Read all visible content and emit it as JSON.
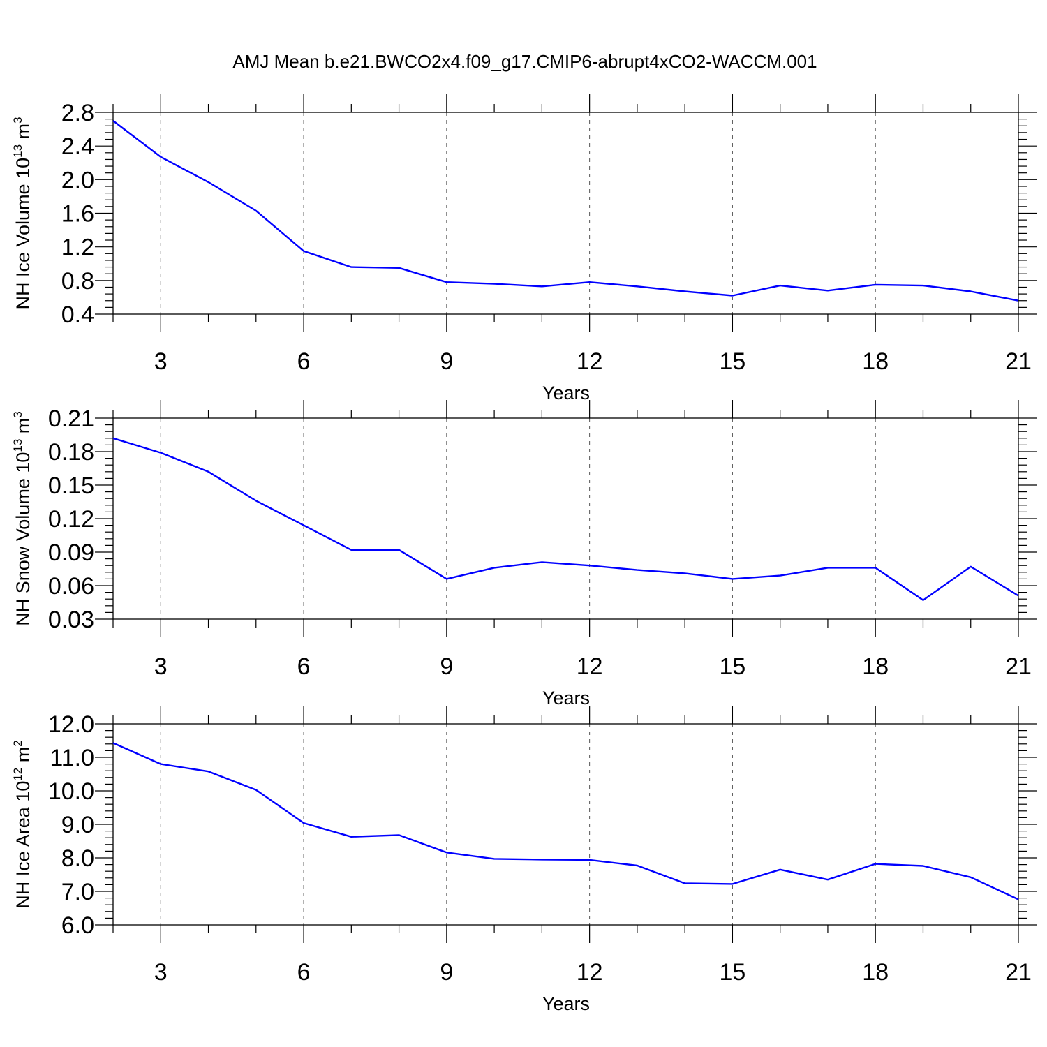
{
  "title": "AMJ Mean b.e21.BWCO2x4.f09_g17.CMIP6-abrupt4xCO2-WACCM.001",
  "colors": {
    "series": "#0000ff",
    "axes": "#000000",
    "grid": "#555555"
  },
  "chart_data": [
    {
      "type": "line",
      "ylabel_main": "NH Ice Volume 10",
      "ylabel_exp": "13",
      "ylabel_unit": " m",
      "ylabel_unit_exp": "3",
      "xlabel": "Years",
      "xlim": [
        2,
        21
      ],
      "ylim": [
        0.4,
        2.8
      ],
      "x_ticks": [
        "3",
        "6",
        "9",
        "12",
        "15",
        "18",
        "21"
      ],
      "y_ticks": [
        "0.4",
        "0.8",
        "1.2",
        "1.6",
        "2.0",
        "2.4",
        "2.8"
      ],
      "grid": "vertical dashed at major x ticks",
      "x": [
        2,
        3,
        4,
        5,
        6,
        7,
        8,
        9,
        10,
        11,
        12,
        13,
        14,
        15,
        16,
        17,
        18,
        19,
        20,
        21
      ],
      "values": [
        2.7,
        2.27,
        1.97,
        1.63,
        1.15,
        0.96,
        0.95,
        0.78,
        0.76,
        0.73,
        0.78,
        0.73,
        0.67,
        0.62,
        0.74,
        0.68,
        0.75,
        0.74,
        0.67,
        0.56
      ]
    },
    {
      "type": "line",
      "ylabel_main": "NH Snow Volume 10",
      "ylabel_exp": "13",
      "ylabel_unit": " m",
      "ylabel_unit_exp": "3",
      "xlabel": "Years",
      "xlim": [
        2,
        21
      ],
      "ylim": [
        0.03,
        0.21
      ],
      "x_ticks": [
        "3",
        "6",
        "9",
        "12",
        "15",
        "18",
        "21"
      ],
      "y_ticks": [
        "0.03",
        "0.06",
        "0.09",
        "0.12",
        "0.15",
        "0.18",
        "0.21"
      ],
      "grid": "vertical dashed at major x ticks",
      "x": [
        2,
        3,
        4,
        5,
        6,
        7,
        8,
        9,
        10,
        11,
        12,
        13,
        14,
        15,
        16,
        17,
        18,
        19,
        20,
        21
      ],
      "values": [
        0.192,
        0.179,
        0.162,
        0.136,
        0.114,
        0.092,
        0.092,
        0.066,
        0.076,
        0.081,
        0.078,
        0.074,
        0.071,
        0.066,
        0.069,
        0.076,
        0.076,
        0.047,
        0.077,
        0.051
      ]
    },
    {
      "type": "line",
      "ylabel_main": "NH Ice Area 10",
      "ylabel_exp": "12",
      "ylabel_unit": " m",
      "ylabel_unit_exp": "2",
      "xlabel": "Years",
      "xlim": [
        2,
        21
      ],
      "ylim": [
        6.0,
        12.0
      ],
      "x_ticks": [
        "3",
        "6",
        "9",
        "12",
        "15",
        "18",
        "21"
      ],
      "y_ticks": [
        "6.0",
        "7.0",
        "8.0",
        "9.0",
        "10.0",
        "11.0",
        "12.0"
      ],
      "grid": "vertical dashed at major x ticks",
      "x": [
        2,
        3,
        4,
        5,
        6,
        7,
        8,
        9,
        10,
        11,
        12,
        13,
        14,
        15,
        16,
        17,
        18,
        19,
        20,
        21
      ],
      "values": [
        11.43,
        10.8,
        10.58,
        10.03,
        9.04,
        8.63,
        8.68,
        8.16,
        7.97,
        7.95,
        7.94,
        7.77,
        7.24,
        7.22,
        7.65,
        7.35,
        7.82,
        7.76,
        7.42,
        6.76
      ]
    }
  ]
}
